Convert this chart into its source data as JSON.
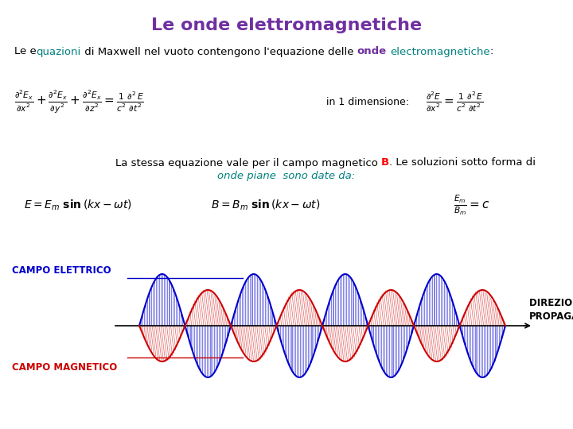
{
  "title": "Le onde elettromagnetiche",
  "title_color": "#7030A0",
  "title_fontsize": 16,
  "bg_color": "#FFFFFF",
  "subtitle_fontsize": 9.5,
  "eq1_fontsize": 9,
  "eq2_fontsize": 9,
  "eq3_fontsize": 9,
  "label_electric": "CAMPO ELETTRICO",
  "label_magnetic": "CAMPO MAGNETICO",
  "label_direction": "DIREZIONE DI\nPROPAGAZIONE",
  "electric_color": "#0000CC",
  "magnetic_color": "#CC0000",
  "electric_label_color": "#0000CC",
  "magnetic_label_color": "#CC0000",
  "direction_label_color": "#000000",
  "onde_color": "#008080",
  "onde_bold_color": "#7030A0",
  "B_color": "#FF0000",
  "subtitle_plain_color": "#000000",
  "onde_text_color": "#008080"
}
